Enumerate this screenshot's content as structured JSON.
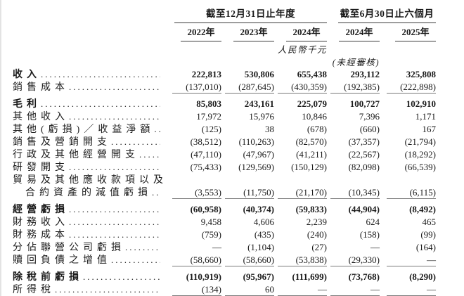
{
  "page": {
    "background_color": "#ffffff",
    "text_color": "#1a1a1a",
    "header_rule_color": "#3c3c3c",
    "total_rule_color": "#7a7a7a"
  },
  "table": {
    "leader_char": ".",
    "col_groups": [
      {
        "label": "截至12月31日止年度",
        "span": 3
      },
      {
        "label": "截至6月30日止六個月",
        "span": 2
      }
    ],
    "col_headers": [
      "2022年",
      "2023年",
      "2024年",
      "2024年",
      "2025年"
    ],
    "unit_note": "人民幣千元",
    "audit_note": "(未經審核)",
    "rows": [
      {
        "label": "收入",
        "bold": true,
        "values": [
          "222,813",
          "530,806",
          "655,438",
          "293,112",
          "325,808"
        ]
      },
      {
        "label": "銷售成本",
        "underline": true,
        "values": [
          "(137,010)",
          "(287,645)",
          "(430,359)",
          "(192,385)",
          "(222,898)"
        ]
      },
      {
        "label": "毛利",
        "bold": true,
        "gap": true,
        "values": [
          "85,803",
          "243,161",
          "225,079",
          "100,727",
          "102,910"
        ]
      },
      {
        "label": "其他收入",
        "values": [
          "17,972",
          "15,976",
          "10,846",
          "7,396",
          "1,171"
        ]
      },
      {
        "label": "其他(虧損)／收益淨額",
        "values": [
          "(125)",
          "38",
          "(678)",
          "(660)",
          "167"
        ]
      },
      {
        "label": "銷售及營銷開支",
        "values": [
          "(38,512)",
          "(110,263)",
          "(82,570)",
          "(37,357)",
          "(21,794)"
        ]
      },
      {
        "label": "行政及其他經營開支",
        "values": [
          "(47,110)",
          "(47,967)",
          "(41,211)",
          "(22,567)",
          "(18,292)"
        ]
      },
      {
        "label": "研發開支",
        "values": [
          "(75,433)",
          "(129,569)",
          "(150,129)",
          "(82,098)",
          "(66,539)"
        ]
      },
      {
        "label": "貿易及其他應收款項以及",
        "no_dots": true,
        "values": [
          "",
          "",
          "",
          "",
          ""
        ]
      },
      {
        "label": "合約資產的減值虧損",
        "indent": true,
        "underline": true,
        "values": [
          "(3,553)",
          "(11,750)",
          "(21,170)",
          "(10,345)",
          "(6,115)"
        ]
      },
      {
        "label": "經營虧損",
        "bold": true,
        "gap": true,
        "values": [
          "(60,958)",
          "(40,374)",
          "(59,833)",
          "(44,904)",
          "(8,492)"
        ]
      },
      {
        "label": "財務收入",
        "values": [
          "9,458",
          "4,606",
          "2,239",
          "624",
          "465"
        ]
      },
      {
        "label": "財務成本",
        "values": [
          "(759)",
          "(435)",
          "(240)",
          "(158)",
          "(99)"
        ]
      },
      {
        "label": "分佔聯營公司虧損",
        "values": [
          "—",
          "(1,104)",
          "(27)",
          "—",
          "(164)"
        ]
      },
      {
        "label": "贖回負債之增值",
        "underline": true,
        "values": [
          "(58,660)",
          "(58,660)",
          "(53,838)",
          "(29,330)",
          "—"
        ]
      },
      {
        "label": "除稅前虧損",
        "bold": true,
        "gap": true,
        "values": [
          "(110,919)",
          "(95,967)",
          "(111,699)",
          "(73,768)",
          "(8,290)"
        ]
      },
      {
        "label": "所得稅",
        "underline": true,
        "values": [
          "(134)",
          "60",
          "—",
          "—",
          "—"
        ]
      }
    ]
  }
}
